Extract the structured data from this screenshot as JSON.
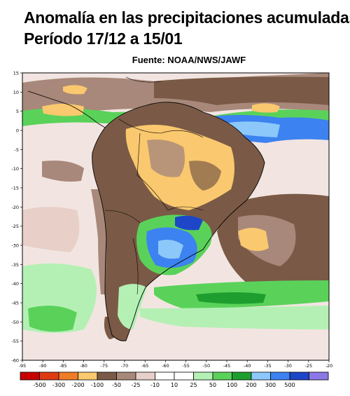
{
  "title": {
    "line1": "Anomalía en las precipitaciones acumuladas.",
    "line2": "Período 17/12 a 15/01"
  },
  "source": "Fuente: NOAA/NWS/JAWF",
  "map": {
    "lon_ticks": [
      "-95",
      "-90",
      "-85",
      "-80",
      "-75",
      "-70",
      "-65",
      "-60",
      "-55",
      "-50",
      "-45",
      "-40",
      "-35",
      "-30",
      "-25",
      "-20"
    ],
    "lat_ticks": [
      "15",
      "10",
      "5",
      "0",
      "-5",
      "-10",
      "-15",
      "-20",
      "-25",
      "-30",
      "-35",
      "-40",
      "-45",
      "-50",
      "-55",
      "-60"
    ],
    "lon_range": [
      -95,
      -20
    ],
    "lat_range": [
      -60,
      15
    ]
  },
  "legend": {
    "labels": [
      "-500",
      "-300",
      "-200",
      "-100",
      "-50",
      "-25",
      "-10",
      "10",
      "25",
      "50",
      "100",
      "200",
      "300",
      "500"
    ],
    "colors": [
      "#c80000",
      "#e03c14",
      "#f07c28",
      "#fac86e",
      "#7a5a46",
      "#a8887a",
      "#e8d0c8",
      "#ffffff",
      "#ffffff",
      "#b4f0b4",
      "#5ad25a",
      "#1e9e2e",
      "#8cc8fa",
      "#3c82f0",
      "#1e46c8",
      "#8c78e6"
    ]
  }
}
